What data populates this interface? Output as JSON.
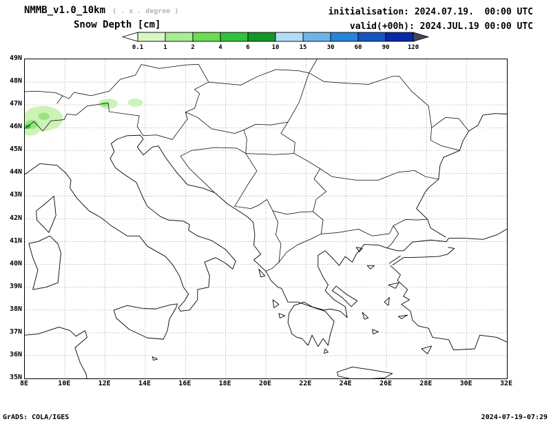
{
  "header": {
    "model_title": "NMMB_v1.0_10km",
    "resolution_note": "( . x . degree )",
    "field_title": "Snow Depth [cm]",
    "init_label": "initialisation:",
    "init_value": "2024.07.19.  00:00 UTC",
    "valid_label": "valid(+00h):",
    "valid_value": "2024.JUL.19 00:00 UTC"
  },
  "colorbar": {
    "ticks": [
      "0.1",
      "1",
      "2",
      "4",
      "6",
      "10",
      "15",
      "30",
      "60",
      "90",
      "120"
    ],
    "segment_colors": [
      "#d8f5c8",
      "#aaeb96",
      "#6edc50",
      "#32c33c",
      "#149628",
      "#b4dcf5",
      "#6eb4e6",
      "#2882d7",
      "#1455be",
      "#0a28a5"
    ],
    "left_arrow_color": "#ffffff",
    "right_arrow_color": "#46465a",
    "outline_color": "#000000"
  },
  "map": {
    "lon_min": 8,
    "lon_max": 32,
    "lat_min": 35,
    "lat_max": 49,
    "lat_ticks": [
      {
        "value": 49,
        "label": "49N"
      },
      {
        "value": 48,
        "label": "48N"
      },
      {
        "value": 47,
        "label": "47N"
      },
      {
        "value": 46,
        "label": "46N"
      },
      {
        "value": 45,
        "label": "45N"
      },
      {
        "value": 44,
        "label": "44N"
      },
      {
        "value": 43,
        "label": "43N"
      },
      {
        "value": 42,
        "label": "42N"
      },
      {
        "value": 41,
        "label": "41N"
      },
      {
        "value": 40,
        "label": "40N"
      },
      {
        "value": 39,
        "label": "39N"
      },
      {
        "value": 38,
        "label": "38N"
      },
      {
        "value": 37,
        "label": "37N"
      },
      {
        "value": 36,
        "label": "36N"
      },
      {
        "value": 35,
        "label": "35N"
      }
    ],
    "lon_ticks": [
      {
        "value": 8,
        "label": "8E"
      },
      {
        "value": 10,
        "label": "10E"
      },
      {
        "value": 12,
        "label": "12E"
      },
      {
        "value": 14,
        "label": "14E"
      },
      {
        "value": 16,
        "label": "16E"
      },
      {
        "value": 18,
        "label": "18E"
      },
      {
        "value": 20,
        "label": "20E"
      },
      {
        "value": 22,
        "label": "22E"
      },
      {
        "value": 24,
        "label": "24E"
      },
      {
        "value": 26,
        "label": "26E"
      },
      {
        "value": 28,
        "label": "28E"
      },
      {
        "value": 30,
        "label": "30E"
      },
      {
        "value": 32,
        "label": "32E"
      }
    ],
    "gridline_color": "#808080",
    "coastline_color": "#000000",
    "snow_colors": {
      "light": "#cdf2b8",
      "medium": "#96e87d",
      "dark": "#46c83c"
    }
  },
  "footer": {
    "left": "GrADS: COLA/IGES",
    "right": "2024-07-19-07:29"
  }
}
